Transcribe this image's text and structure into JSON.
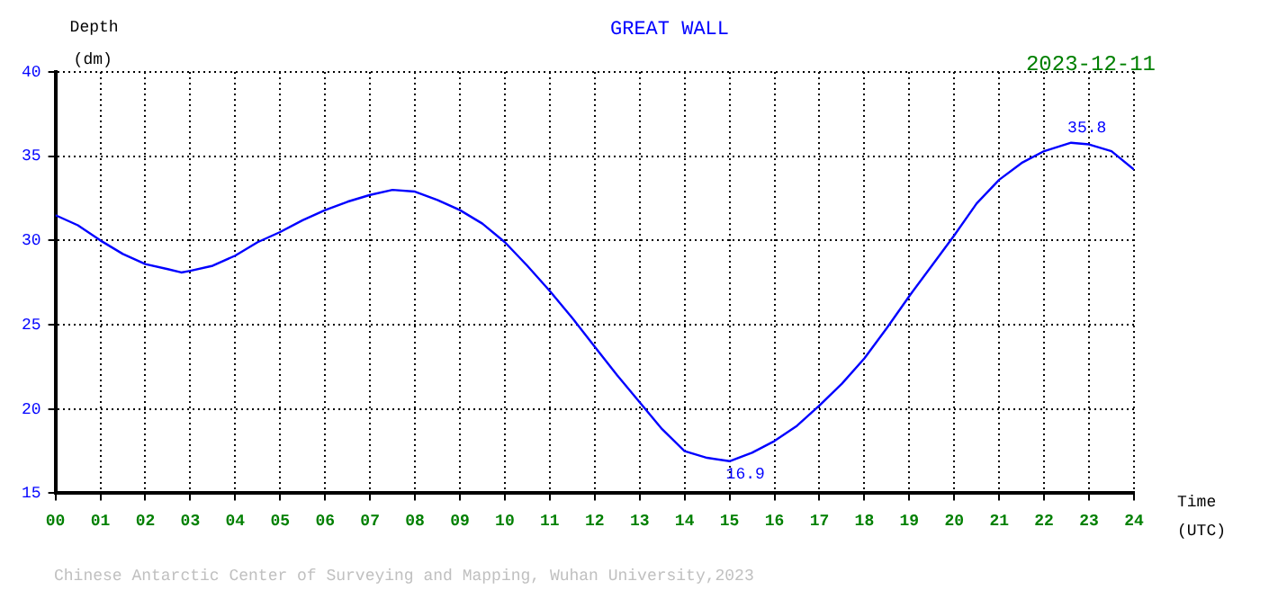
{
  "chart_data": {
    "type": "line",
    "title": "GREAT WALL",
    "subtitle": "2023-12-11",
    "xlabel": "Time\n(UTC)",
    "ylabel": "Depth\n(dm)",
    "x": [
      0,
      0.5,
      1,
      1.5,
      2,
      2.5,
      2.8,
      3,
      3.5,
      4,
      4.5,
      5,
      5.5,
      6,
      6.5,
      7,
      7.5,
      8,
      8.5,
      9,
      9.5,
      10,
      10.5,
      11,
      11.5,
      12,
      12.5,
      13,
      13.5,
      14,
      14.5,
      15,
      15.5,
      16,
      16.5,
      17,
      17.5,
      18,
      18.5,
      19,
      19.5,
      20,
      20.5,
      21,
      21.5,
      22,
      22.6,
      23,
      23.5,
      24
    ],
    "series": [
      {
        "color": "#0000ff",
        "values": [
          31.5,
          30.9,
          30.0,
          29.2,
          28.6,
          28.3,
          28.1,
          28.2,
          28.5,
          29.1,
          29.9,
          30.5,
          31.2,
          31.8,
          32.3,
          32.7,
          33.0,
          32.9,
          32.4,
          31.8,
          31.0,
          29.9,
          28.5,
          27.0,
          25.4,
          23.7,
          22.0,
          20.4,
          18.8,
          17.5,
          17.1,
          16.9,
          17.4,
          18.1,
          19.0,
          20.2,
          21.5,
          23.0,
          24.8,
          26.7,
          28.5,
          30.3,
          32.2,
          33.6,
          34.6,
          35.3,
          35.8,
          35.7,
          35.3,
          34.2
        ]
      }
    ],
    "xlim": [
      0,
      24
    ],
    "xticks": [
      {
        "value": 0,
        "label": "00"
      },
      {
        "value": 1,
        "label": "01"
      },
      {
        "value": 2,
        "label": "02"
      },
      {
        "value": 3,
        "label": "03"
      },
      {
        "value": 4,
        "label": "04"
      },
      {
        "value": 5,
        "label": "05"
      },
      {
        "value": 6,
        "label": "06"
      },
      {
        "value": 7,
        "label": "07"
      },
      {
        "value": 8,
        "label": "08"
      },
      {
        "value": 9,
        "label": "09"
      },
      10,
      11,
      12,
      13,
      14,
      15,
      16,
      17,
      18,
      19,
      20,
      21,
      22,
      23,
      24
    ],
    "ylim": [
      15,
      40
    ],
    "yticks": [
      15,
      20,
      25,
      30,
      35,
      40
    ],
    "grid": true,
    "marker": "none",
    "line_style": "solid",
    "legend": false,
    "annotations": [
      {
        "text": "35.8",
        "x": 22.6,
        "y": 35.8
      },
      {
        "text": "16.9",
        "x": 15,
        "y": 16.9
      },
      "Chinese Antarctic Center of Surveying and Mapping, Wuhan University,2023"
    ]
  }
}
